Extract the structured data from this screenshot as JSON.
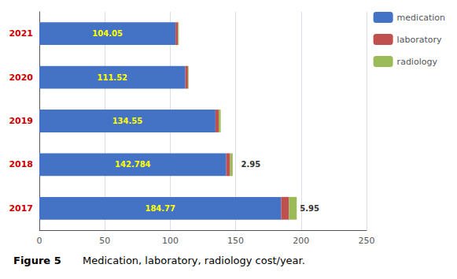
{
  "chart_data": {
    "type": "bar",
    "orientation": "horizontal",
    "stacked": true,
    "title": "Figure 5",
    "subtitle": "Medication, laboratory, radiology cost/year.",
    "categories": [
      "2017",
      "2018",
      "2019",
      "2020",
      "2021"
    ],
    "series": [
      {
        "name": "medication",
        "color": "#4472C4",
        "values": [
          184.77,
          142.784,
          134.55,
          111.52,
          104.05
        ],
        "data_labels": true
      },
      {
        "name": "laboratory",
        "color": "#C0504D",
        "values": [
          5.95,
          2.95,
          2.5,
          2.0,
          2.0
        ],
        "data_labels": true,
        "value_labels": [
          "5.95",
          "2.95",
          null,
          null,
          null
        ]
      },
      {
        "name": "radiology",
        "color": "#9BBB59",
        "values": [
          5.95,
          2.0,
          1.5,
          0.5,
          0.5
        ]
      }
    ],
    "xlim": [
      0,
      250
    ],
    "xticks": [
      0,
      50,
      100,
      150,
      200,
      250
    ],
    "grid": true,
    "legend": "right"
  }
}
